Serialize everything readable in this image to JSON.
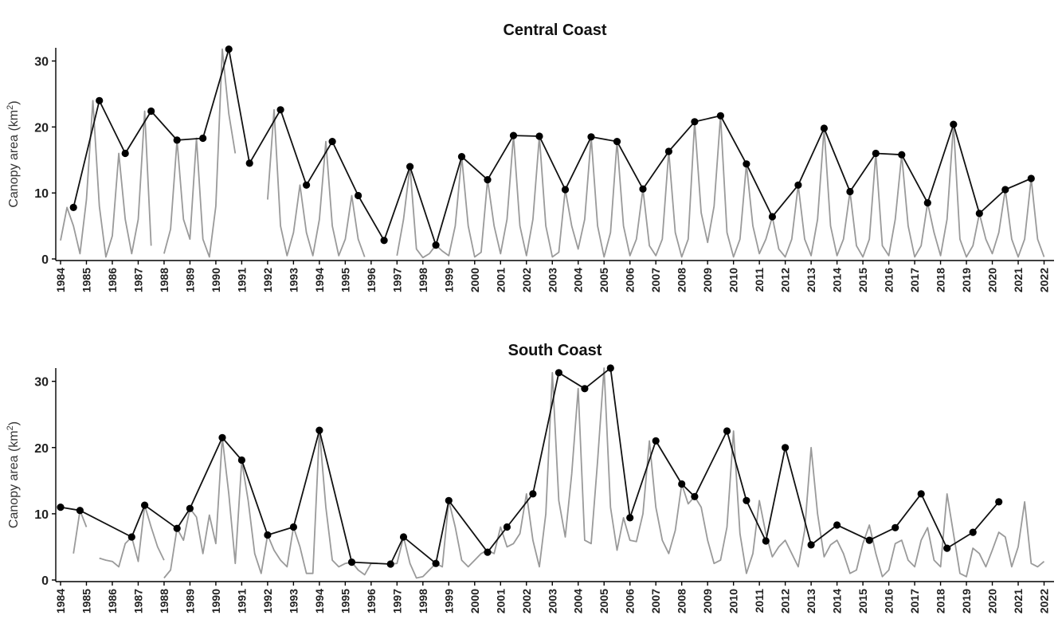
{
  "chart_data": [
    {
      "type": "line",
      "title": "Central Coast",
      "ylabel": "Canopy area (km",
      "ylabel_sup": "2",
      "ylabel_close": ")",
      "ylim": [
        0,
        32
      ],
      "yticks": [
        0,
        10,
        20,
        30
      ],
      "xlim": [
        1984,
        2022.2
      ],
      "xticks": [
        "1984",
        "1985",
        "1986",
        "1987",
        "1988",
        "1989",
        "1990",
        "1991",
        "1992",
        "1993",
        "1994",
        "1995",
        "1996",
        "1997",
        "1998",
        "1999",
        "2000",
        "2001",
        "2002",
        "2003",
        "2004",
        "2005",
        "2006",
        "2007",
        "2008",
        "2009",
        "2010",
        "2011",
        "2012",
        "2013",
        "2014",
        "2015",
        "2016",
        "2017",
        "2018",
        "2019",
        "2020",
        "2021",
        "2022"
      ],
      "series": [
        {
          "style": "quarterly-gray",
          "segments": [
            {
              "x": [
                1984.0,
                1984.25,
                1984.5,
                1984.75,
                1985.0,
                1985.25,
                1985.5,
                1985.75,
                1986.0,
                1986.25,
                1986.5,
                1986.75,
                1987.0,
                1987.25,
                1987.5
              ],
              "y": [
                2.8,
                7.8,
                5.0,
                0.8,
                9.0,
                24.0,
                8.0,
                0.3,
                3.5,
                16.0,
                6.0,
                0.8,
                6.0,
                22.4,
                2.0
              ]
            },
            {
              "x": [
                1988.0,
                1988.25,
                1988.5,
                1988.75,
                1989.0,
                1989.25,
                1989.5,
                1989.75,
                1990.0,
                1990.25,
                1990.5,
                1990.75
              ],
              "y": [
                0.8,
                4.5,
                18.0,
                6.0,
                3.0,
                18.3,
                3.0,
                0.3,
                8.0,
                31.8,
                22.0,
                16.0
              ]
            },
            {
              "x": [
                1992.0,
                1992.25,
                1992.5,
                1992.75,
                1993.0,
                1993.25,
                1993.5,
                1993.75,
                1994.0,
                1994.25,
                1994.5,
                1994.75,
                1995.0,
                1995.25,
                1995.5,
                1995.75
              ],
              "y": [
                9.0,
                22.6,
                5.0,
                0.5,
                4.0,
                11.2,
                4.0,
                0.5,
                6.0,
                17.8,
                5.0,
                0.5,
                3.0,
                9.6,
                3.0,
                0.3
              ]
            },
            {
              "x": [
                1997.0,
                1997.25,
                1997.5,
                1997.75,
                1998.0,
                1998.25,
                1998.5,
                1998.75,
                1999.0,
                1999.25,
                1999.5,
                1999.75,
                2000.0,
                2000.25,
                2000.5,
                2000.75,
                2001.0,
                2001.25,
                2001.5,
                2001.75,
                2002.0,
                2002.25,
                2002.5,
                2002.75,
                2003.0,
                2003.25,
                2003.5,
                2003.75,
                2004.0,
                2004.25,
                2004.5,
                2004.75,
                2005.0,
                2005.25,
                2005.5,
                2005.75,
                2006.0,
                2006.25,
                2006.5,
                2006.75,
                2007.0,
                2007.25,
                2007.5,
                2007.75,
                2008.0,
                2008.25,
                2008.5,
                2008.75,
                2009.0,
                2009.25,
                2009.5,
                2009.75,
                2010.0,
                2010.25,
                2010.5,
                2010.75,
                2011.0,
                2011.25,
                2011.5,
                2011.75,
                2012.0,
                2012.25,
                2012.5,
                2012.75,
                2013.0,
                2013.25,
                2013.5,
                2013.75,
                2014.0,
                2014.25,
                2014.5,
                2014.75,
                2015.0,
                2015.25,
                2015.5,
                2015.75,
                2016.0,
                2016.25,
                2016.5,
                2016.75,
                2017.0,
                2017.25,
                2017.5,
                2017.75,
                2018.0,
                2018.25,
                2018.5,
                2018.75,
                2019.0,
                2019.25,
                2019.5,
                2019.75,
                2020.0,
                2020.25,
                2020.5,
                2020.75,
                2021.0,
                2021.25,
                2021.5,
                2021.75,
                2022.0
              ],
              "y": [
                0.5,
                6.0,
                14.0,
                1.5,
                0.2,
                0.8,
                2.1,
                1.2,
                0.5,
                5.0,
                15.5,
                5.0,
                0.3,
                1.0,
                12.0,
                5.0,
                0.8,
                6.0,
                18.7,
                5.0,
                0.5,
                6.0,
                18.6,
                5.0,
                0.3,
                1.0,
                10.5,
                5.0,
                1.5,
                6.0,
                18.5,
                5.0,
                0.3,
                4.0,
                17.8,
                5.0,
                0.5,
                3.0,
                10.6,
                2.0,
                0.5,
                3.0,
                16.3,
                4.0,
                0.3,
                3.0,
                20.8,
                7.0,
                2.5,
                8.0,
                21.7,
                4.0,
                0.3,
                3.0,
                14.4,
                5.0,
                0.8,
                3.0,
                6.4,
                1.5,
                0.3,
                3.0,
                11.2,
                3.0,
                0.5,
                6.0,
                19.8,
                5.0,
                0.5,
                3.0,
                10.2,
                2.0,
                0.3,
                3.0,
                16.0,
                2.0,
                0.5,
                6.0,
                15.8,
                5.0,
                0.3,
                2.0,
                8.5,
                4.0,
                0.5,
                6.0,
                20.4,
                3.0,
                0.3,
                2.0,
                6.9,
                3.0,
                0.8,
                4.0,
                10.5,
                3.0,
                0.3,
                3.0,
                12.2,
                3.0,
                0.3
              ]
            }
          ]
        },
        {
          "style": "annual-max-black",
          "x": [
            1984.5,
            1985.5,
            1986.5,
            1987.5,
            1988.5,
            1989.5,
            1990.5,
            1991.3,
            1992.5,
            1993.5,
            1994.5,
            1995.5,
            1996.5,
            1997.5,
            1998.5,
            1999.5,
            2000.5,
            2001.5,
            2002.5,
            2003.5,
            2004.5,
            2005.5,
            2006.5,
            2007.5,
            2008.5,
            2009.5,
            2010.5,
            2011.5,
            2012.5,
            2013.5,
            2014.5,
            2015.5,
            2016.5,
            2017.5,
            2018.5,
            2019.5,
            2020.5,
            2021.5
          ],
          "y": [
            7.8,
            24.0,
            16.0,
            22.4,
            18.0,
            18.3,
            31.8,
            14.5,
            22.6,
            11.2,
            17.8,
            9.6,
            2.8,
            14.0,
            2.1,
            15.5,
            12.0,
            18.7,
            18.6,
            10.5,
            18.5,
            17.8,
            10.6,
            16.3,
            20.8,
            21.7,
            14.4,
            6.4,
            11.2,
            19.8,
            10.2,
            16.0,
            15.8,
            8.5,
            20.4,
            6.9,
            10.5,
            12.2
          ]
        }
      ]
    },
    {
      "type": "line",
      "title": "South Coast",
      "ylabel": "Canopy area (km",
      "ylabel_sup": "2",
      "ylabel_close": ")",
      "ylim": [
        0,
        32
      ],
      "yticks": [
        0,
        10,
        20,
        30
      ],
      "xlim": [
        1984,
        2022.2
      ],
      "xticks": [
        "1984",
        "1985",
        "1986",
        "1987",
        "1988",
        "1989",
        "1990",
        "1991",
        "1992",
        "1993",
        "1994",
        "1995",
        "1996",
        "1997",
        "1998",
        "1999",
        "2000",
        "2001",
        "2002",
        "2003",
        "2004",
        "2005",
        "2006",
        "2007",
        "2008",
        "2009",
        "2010",
        "2011",
        "2012",
        "2013",
        "2014",
        "2015",
        "2016",
        "2017",
        "2018",
        "2019",
        "2020",
        "2021",
        "2022"
      ],
      "series": [
        {
          "style": "quarterly-gray",
          "segments": [
            {
              "x": [
                1984.5,
                1984.75,
                1985.0
              ],
              "y": [
                4.0,
                10.5,
                8.0
              ]
            },
            {
              "x": [
                1985.5,
                1985.75,
                1986.0,
                1986.25,
                1986.5,
                1986.75,
                1987.0,
                1987.25,
                1987.5,
                1987.75,
                1988.0
              ],
              "y": [
                3.3,
                3.0,
                2.8,
                2.0,
                5.5,
                6.5,
                2.8,
                11.3,
                8.0,
                5.0,
                3.0
              ]
            },
            {
              "x": [
                1988.0,
                1988.25,
                1988.5,
                1988.75,
                1989.0,
                1989.25,
                1989.5,
                1989.75,
                1990.0,
                1990.25,
                1990.5,
                1990.75,
                1991.0,
                1991.25,
                1991.5,
                1991.75,
                1992.0,
                1992.25,
                1992.5,
                1992.75,
                1993.0,
                1993.25,
                1993.5,
                1993.75,
                1994.0,
                1994.25,
                1994.5,
                1994.75,
                1995.0,
                1995.25,
                1995.5,
                1995.75,
                1996.0,
                1996.25
              ],
              "y": [
                0.3,
                1.5,
                7.8,
                6.0,
                10.8,
                9.5,
                4.0,
                9.8,
                5.5,
                21.5,
                13.0,
                2.5,
                18.0,
                12.0,
                4.0,
                1.0,
                6.8,
                4.5,
                3.0,
                2.0,
                8.0,
                5.0,
                1.0,
                1.0,
                22.6,
                11.0,
                3.0,
                2.0,
                2.5,
                2.7,
                1.5,
                0.8,
                2.5,
                2.5
              ]
            },
            {
              "x": [
                1996.75,
                1997.0,
                1997.25,
                1997.5,
                1997.75,
                1998.0,
                1998.25,
                1998.5,
                1998.75,
                1999.0,
                1999.25,
                1999.5,
                1999.75,
                2000.0,
                2000.25,
                2000.5,
                2000.75,
                2001.0,
                2001.25,
                2001.5,
                2001.75,
                2002.0,
                2002.25,
                2002.5,
                2002.75,
                2003.0,
                2003.25,
                2003.5,
                2003.75,
                2004.0,
                2004.25,
                2004.5,
                2004.75,
                2005.0,
                2005.25,
                2005.5,
                2005.75,
                2006.0,
                2006.25,
                2006.5,
                2006.75,
                2007.0,
                2007.25,
                2007.5,
                2007.75,
                2008.0,
                2008.25,
                2008.5,
                2008.75,
                2009.0,
                2009.25,
                2009.5,
                2009.75,
                2010.0,
                2010.25,
                2010.5,
                2010.75,
                2011.0,
                2011.25,
                2011.5,
                2011.75,
                2012.0,
                2012.25,
                2012.5,
                2012.75,
                2013.0,
                2013.25,
                2013.5,
                2013.75,
                2014.0,
                2014.25,
                2014.5,
                2014.75,
                2015.0,
                2015.25,
                2015.5,
                2015.75,
                2016.0,
                2016.25,
                2016.5,
                2016.75,
                2017.0,
                2017.25,
                2017.5,
                2017.75,
                2018.0,
                2018.25,
                2018.5,
                2018.75,
                2019.0,
                2019.25,
                2019.5,
                2019.75,
                2020.0,
                2020.25,
                2020.5,
                2020.75,
                2021.0,
                2021.25,
                2021.5,
                2021.75,
                2022.0
              ],
              "y": [
                2.4,
                2.5,
                6.5,
                2.5,
                0.3,
                0.5,
                1.5,
                2.5,
                2.0,
                12.0,
                8.0,
                3.0,
                2.0,
                3.0,
                4.0,
                4.5,
                4.0,
                8.0,
                5.0,
                5.5,
                7.0,
                13.0,
                6.0,
                2.0,
                10.0,
                31.3,
                12.0,
                6.5,
                16.0,
                28.9,
                6.0,
                5.5,
                18.0,
                32.0,
                11.0,
                4.5,
                9.4,
                6.0,
                5.8,
                10.0,
                21.0,
                11.0,
                6.0,
                4.0,
                7.5,
                14.5,
                11.5,
                12.6,
                11.0,
                6.0,
                2.5,
                3.0,
                8.0,
                22.5,
                7.0,
                1.0,
                4.0,
                12.0,
                7.0,
                3.5,
                5.0,
                6.0,
                4.0,
                2.0,
                7.5,
                20.0,
                10.0,
                3.5,
                5.3,
                6.0,
                4.0,
                1.0,
                1.5,
                5.5,
                8.3,
                4.0,
                0.5,
                1.5,
                5.5,
                6.0,
                3.0,
                2.0,
                6.0,
                7.9,
                3.0,
                2.0,
                13.0,
                7.0,
                1.0,
                0.5,
                4.8,
                4.0,
                2.0,
                4.5,
                7.2,
                6.5,
                2.0,
                5.0,
                11.8,
                2.5,
                2.0,
                2.8
              ]
            }
          ]
        },
        {
          "style": "annual-max-black",
          "x": [
            1984.0,
            1984.75,
            1986.75,
            1987.25,
            1988.5,
            1989.0,
            1990.25,
            1991.0,
            1992.0,
            1993.0,
            1994.0,
            1995.25,
            1996.75,
            1997.25,
            1998.5,
            1999.0,
            2000.5,
            2001.25,
            2002.25,
            2003.25,
            2004.25,
            2005.25,
            2006.0,
            2007.0,
            2008.0,
            2008.5,
            2009.75,
            2010.5,
            2011.25,
            2012.0,
            2013.0,
            2014.0,
            2015.25,
            2016.25,
            2017.25,
            2018.25,
            2019.25,
            2020.25,
            2021.25
          ],
          "y": [
            11.0,
            10.5,
            6.5,
            11.3,
            7.8,
            10.8,
            21.5,
            18.1,
            6.8,
            8.0,
            22.6,
            2.7,
            2.4,
            6.5,
            2.5,
            12.0,
            4.2,
            8.0,
            13.0,
            31.3,
            28.9,
            32.0,
            9.4,
            21.0,
            14.5,
            12.6,
            22.5,
            12.0,
            5.9,
            20.0,
            5.3,
            8.3,
            6.0,
            7.9,
            13.0,
            4.8,
            7.2,
            11.8,
            null
          ]
        }
      ]
    }
  ]
}
